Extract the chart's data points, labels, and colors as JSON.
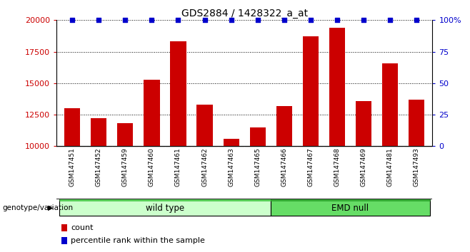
{
  "title": "GDS2884 / 1428322_a_at",
  "samples": [
    "GSM147451",
    "GSM147452",
    "GSM147459",
    "GSM147460",
    "GSM147461",
    "GSM147462",
    "GSM147463",
    "GSM147465",
    "GSM147466",
    "GSM147467",
    "GSM147468",
    "GSM147469",
    "GSM147481",
    "GSM147493"
  ],
  "counts": [
    13000,
    12200,
    11800,
    15300,
    18300,
    13300,
    10600,
    11500,
    13200,
    18700,
    19400,
    13600,
    16600,
    13700
  ],
  "bar_color": "#cc0000",
  "percentile_color": "#0000cc",
  "ylim_left": [
    10000,
    20000
  ],
  "yticks_left": [
    10000,
    12500,
    15000,
    17500,
    20000
  ],
  "ylim_right": [
    0,
    100
  ],
  "yticks_right": [
    0,
    25,
    50,
    75,
    100
  ],
  "groups": [
    {
      "label": "wild type",
      "start": 0,
      "end": 8,
      "color_light": "#ccffcc",
      "color_dark": "#55cc55"
    },
    {
      "label": "EMD null",
      "start": 8,
      "end": 14,
      "color_light": "#66dd66",
      "color_dark": "#33aa33"
    }
  ],
  "group_row_label": "genotype/variation",
  "legend_count_label": "count",
  "legend_percentile_label": "percentile rank within the sample",
  "title_fontsize": 10,
  "tick_label_fontsize": 8,
  "background_color": "#ffffff",
  "tick_bg_color": "#cccccc"
}
